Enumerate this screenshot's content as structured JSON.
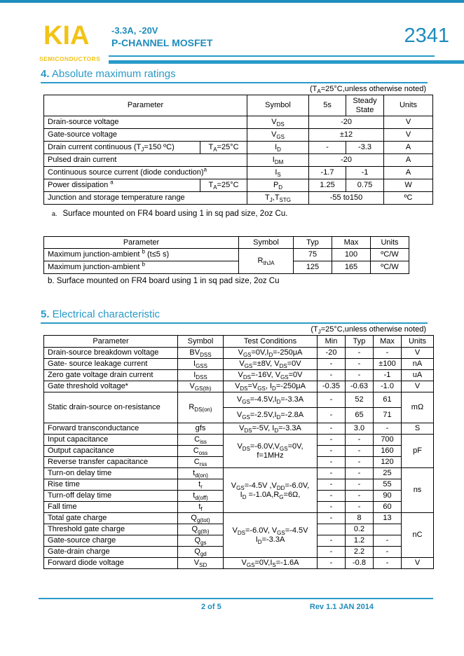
{
  "colors": {
    "accent": "#1e8cbd",
    "brand_yellow": "#f2c318"
  },
  "brand": {
    "logo": "KIA",
    "logo_sub": "SEMICONDUCTORS",
    "rating": "-3.3A, -20V",
    "device_type": "P-CHANNEL MOSFET",
    "part_number": "2341"
  },
  "section4": {
    "number": "4.",
    "title": " Absolute maximum ratings",
    "note_html": "(T<sub>A</sub>=25°C,unless otherwise noted)",
    "abs_max_table": {
      "headers": {
        "parameter": "Parameter",
        "symbol": "Symbol",
        "five_s": "5s",
        "steady_state": "Steady State",
        "units": "Units"
      },
      "rows": [
        {
          "parameter_html": "Drain-source voltage",
          "symbol_html": "V<sub>DS</sub>",
          "value": "-20",
          "units": "V"
        },
        {
          "parameter_html": "Gate-source voltage",
          "symbol_html": "V<sub>GS</sub>",
          "value": "±12",
          "units": "V"
        },
        {
          "parameter_html": "Drain current continuous (T<sub>J</sub>=150 ºC)",
          "condition_html": "T<sub>A</sub>=25°C",
          "symbol_html": "I<sub>D</sub>",
          "value_5s": "-",
          "value_steady": "-3.3",
          "units": "A"
        },
        {
          "parameter_html": "Pulsed drain current",
          "symbol_html": "I<sub>DM</sub>",
          "value": "-20",
          "units": "A"
        },
        {
          "parameter_html": "Continuous source current (diode conduction)<sup>a</sup>",
          "symbol_html": "I<sub>S</sub>",
          "value_5s": "-1.7",
          "value_steady": "-1",
          "units": "A"
        },
        {
          "parameter_html": "Power dissipation <sup>a</sup>",
          "condition_html": "T<sub>A</sub>=25°C",
          "symbol_html": "P<sub>D</sub>",
          "value_5s": "1.25",
          "value_steady": "0.75",
          "units": "W"
        },
        {
          "parameter_html": "Junction and storage temperature range",
          "symbol_html": "T<sub>J</sub>,T<sub>STG</sub>",
          "value": "-55 to150",
          "units": "ºC"
        }
      ]
    },
    "footnote_a_label": "a.",
    "footnote_a_text": "Surface mounted on FR4 board using 1 in sq pad size, 2oz Cu.",
    "thermal_table": {
      "headers": {
        "parameter": "Parameter",
        "symbol": "Symbol",
        "typ": "Typ",
        "max": "Max",
        "units": "Units"
      },
      "rows": [
        {
          "parameter_html": "Maximum junction-ambient <sup>b</sup> (t≤5 s)",
          "symbol_html": "R<sub>thJA</sub>",
          "typ": "75",
          "max": "100",
          "units": "ºC/W"
        },
        {
          "parameter_html": "Maximum junction-ambient <sup>b</sup>",
          "typ": "125",
          "max": "165",
          "units": "ºC/W"
        }
      ]
    },
    "footnote_b": "b. Surface mounted on FR4 board using 1 in sq pad size, 2oz Cu"
  },
  "section5": {
    "number": "5.",
    "title": " Electrical characteristic",
    "note_html": "(T<sub>J</sub>=25°C,unless otherwise noted)",
    "table": {
      "headers": {
        "parameter": "Parameter",
        "symbol": "Symbol",
        "test_conditions": "Test Conditions",
        "min": "Min",
        "typ": "Typ",
        "max": "Max",
        "units": "Units"
      },
      "rows": [
        {
          "parameter_html": "Drain-source breakdown voltage",
          "symbol_html": "BV<sub>DSS</sub>",
          "cond_html": "V<sub>GS</sub>=0V,I<sub>D</sub>=-250μA",
          "min": "-20",
          "typ": "-",
          "max": "-",
          "units": "V"
        },
        {
          "parameter_html": "Gate- source leakage current",
          "symbol_html": "I<sub>GSS</sub>",
          "cond_html": "V<sub>GS</sub>=±8V, V<sub>DS</sub>=0V",
          "min": "-",
          "typ": "-",
          "max": "±100",
          "units": "nA"
        },
        {
          "parameter_html": "Zero gate voltage drain current",
          "symbol_html": "I<sub>DSS</sub>",
          "cond_html": "V<sub>DS</sub>=-16V, V<sub>GS</sub>=0V",
          "min": "-",
          "typ": "-",
          "max": "-1",
          "units": "uA"
        },
        {
          "parameter_html": "Gate threshold voltage*",
          "symbol_html": "V<sub>GS(th)</sub>",
          "cond_html": "V<sub>DS</sub>=V<sub>GS</sub>, I<sub>D</sub>=-250μA",
          "min": "-0.35",
          "typ": "-0.63",
          "max": "-1.0",
          "units": "V"
        },
        {
          "parameter_html": "Static drain-source on-resistance",
          "symbol_html": "R<sub>DS(on)</sub>",
          "cond_html": "V<sub>GS</sub>=-4.5V,I<sub>D</sub>=-3.3A",
          "min": "-",
          "typ": "52",
          "max": "61",
          "units": "mΩ"
        },
        {
          "cond_html": "V<sub>GS</sub>=-2.5V,I<sub>D</sub>=-2.8A",
          "min": "-",
          "typ": "65",
          "max": "71"
        },
        {
          "parameter_html": "Forward transconductance",
          "symbol_html": "gfs",
          "cond_html": "V<sub>DS</sub>=-5V, I<sub>D</sub>=-3.3A",
          "min": "-",
          "typ": "3.0",
          "max": "-",
          "units": "S"
        },
        {
          "parameter_html": "Input capacitance",
          "symbol_html": "C<sub>iss</sub>",
          "cond_html": "V<sub>DS</sub>=-6.0V,V<sub>GS</sub>=0V,<br>f=1MHz",
          "min": "-",
          "typ": "-",
          "max": "700",
          "units": "pF"
        },
        {
          "parameter_html": "Output capacitance",
          "symbol_html": "C<sub>oss</sub>",
          "min": "-",
          "typ": "-",
          "max": "160"
        },
        {
          "parameter_html": "Reverse transfer capacitance",
          "symbol_html": "C<sub>rss</sub>",
          "min": "-",
          "typ": "-",
          "max": "120"
        },
        {
          "parameter_html": "Turn-on delay time",
          "symbol_html": "t<sub>d(on)</sub>",
          "cond_html": "V<sub>GS</sub>=-4.5V ,V<sub>DD</sub>=-6.0V,<br>I<sub>D</sub> =-1.0A,R<sub>G</sub>=6Ω,",
          "min": "-",
          "typ": "-",
          "max": "25",
          "units": "ns"
        },
        {
          "parameter_html": "Rise time",
          "symbol_html": "t<sub>r</sub>",
          "min": "-",
          "typ": "-",
          "max": "55"
        },
        {
          "parameter_html": "Turn-off delay time",
          "symbol_html": "t<sub>d(off)</sub>",
          "min": "-",
          "typ": "-",
          "max": "90"
        },
        {
          "parameter_html": "Fall time",
          "symbol_html": "t<sub>f</sub>",
          "min": "-",
          "typ": "-",
          "max": "60"
        },
        {
          "parameter_html": "Total gate charge",
          "symbol_html": "Q<sub>g(tot)</sub>",
          "cond_html": "V<sub>DS</sub>=-6.0V, V<sub>GS</sub>=-4.5V<br>I<sub>D</sub>=-3.3A",
          "min": "-",
          "typ": "8",
          "max": "13",
          "units": "nC"
        },
        {
          "parameter_html": "Threshold gate charge",
          "symbol_html": "Q<sub>g(th)</sub>",
          "min": "",
          "typ": "0.2",
          "max": ""
        },
        {
          "parameter_html": "Gate-source charge",
          "symbol_html": "Q<sub>gs</sub>",
          "min": "-",
          "typ": "1.2",
          "max": "-"
        },
        {
          "parameter_html": "Gate-drain charge",
          "symbol_html": "Q<sub>gd</sub>",
          "min": "-",
          "typ": "2.2",
          "max": "-"
        },
        {
          "parameter_html": "Forward diode voltage",
          "symbol_html": "V<sub>SD</sub>",
          "cond_html": "V<sub>GS</sub>=0V,I<sub>S</sub>=-1.6A",
          "min": "-",
          "typ": "-0.8",
          "max": "-",
          "units": "V"
        }
      ]
    }
  },
  "footer": {
    "page_number": "2 of 5",
    "revision": "Rev 1.1 JAN 2014"
  }
}
